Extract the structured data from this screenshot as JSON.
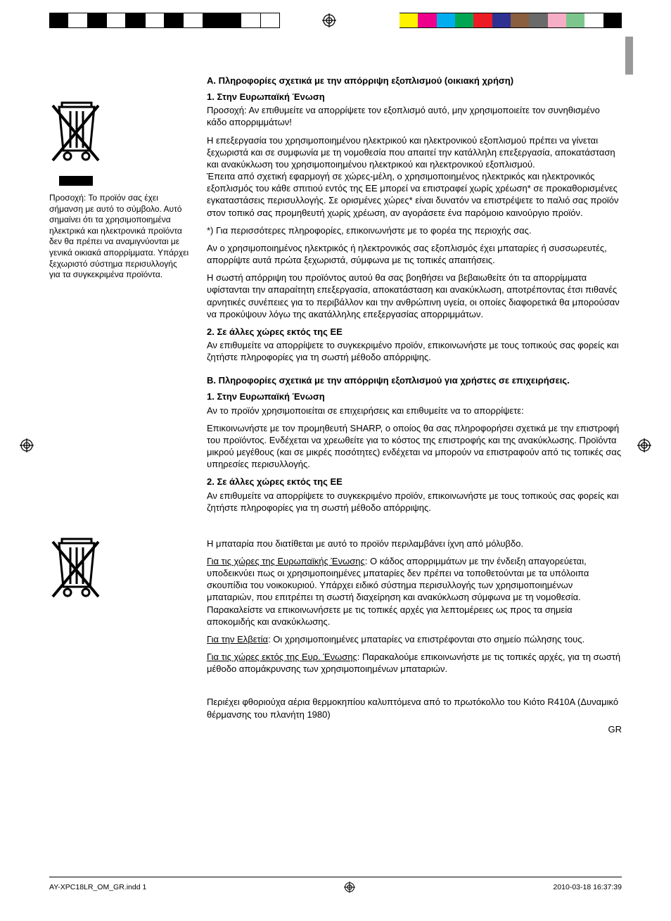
{
  "colorbar": {
    "left_pattern": [
      "#000000",
      "#ffffff",
      "#000000",
      "#ffffff",
      "#000000",
      "#ffffff",
      "#000000",
      "#ffffff",
      "#000000",
      "#000000",
      "#ffffff",
      "#ffffff"
    ],
    "right_colors": [
      "#fef200",
      "#ec008c",
      "#00aeef",
      "#00a651",
      "#ed1c24",
      "#2e3192",
      "#895f3f",
      "#6a6a6a",
      "#f6adc6",
      "#7cc68d",
      "#ffffff",
      "#000000"
    ]
  },
  "side_text": "Προσοχή: Το προϊόν σας έχει σήμανση με αυτό το σύμβολο. Αυτό σημαίνει ότι τα χρησιμοποιημένα ηλεκτρικά και ηλεκτρονικά προϊόντα δεν θα πρέπει να αναμιγνύονται με γενικά οικιακά απορρίμματα. Υπάρχει ξεχωριστό σύστημα περισυλλογής για τα συγκεκριμένα προϊόντα.",
  "A": {
    "title": "Α. Πληροφορίες σχετικά με την απόρριψη εξοπλισμού (οικιακή χρήση)",
    "s1_title": "1. Στην Ευρωπαϊκή Ένωση",
    "p1": "Προσοχή: Αν επιθυμείτε να απορρίψετε τον εξοπλισμό αυτό, μην χρησιμοποιείτε τον συνηθισμένο κάδο απορριμμάτων!",
    "p2": "Η επεξεργασία του χρησιμοποιημένου ηλεκτρικού και ηλεκτρονικού εξοπλισμού πρέπει να γίνεται ξεχωριστά και σε συμφωνία με τη νομοθεσία που απαιτεί την κατάλληλη επεξεργασία, αποκατάσταση και ανακύκλωση του χρησιμοποιημένου ηλεκτρικού και ηλεκτρονικού εξοπλισμού.",
    "p2b": "Έπειτα από σχετική εφαρμογή σε χώρες-μέλη, ο χρησιμοποιημένος ηλεκτρικός και ηλεκτρονικός εξοπλισμός του κάθε σπιτιού εντός της ΕΕ μπορεί να επιστραφεί χωρίς χρέωση* σε προκαθορισμένες εγκαταστάσεις περισυλλογής. Σε ορισμένες χώρες* είναι δυνατόν να επιστρέψετε το παλιό σας προϊόν στον τοπικό σας προμηθευτή χωρίς χρέωση, αν αγοράσετε ένα παρόμοιο καινούργιο προϊόν.",
    "p3": "*) Για περισσότερες πληροφορίες, επικοινωνήστε με το φορέα της περιοχής σας.",
    "p4": "Αν ο χρησιμοποιημένος ηλεκτρικός ή ηλεκτρονικός σας εξοπλισμός έχει μπαταρίες ή συσσωρευτές, απορρίψτε αυτά πρώτα ξεχωριστά, σύμφωνα με τις τοπικές απαιτήσεις.",
    "p5": "Η σωστή απόρριψη του προϊόντος αυτού θα σας βοηθήσει να βεβαιωθείτε ότι τα απορρίμματα υφίστανται την απαραίτητη επεξεργασία, αποκατάσταση και ανακύκλωση, αποτρέποντας έτσι πιθανές αρνητικές συνέπειες για το περιβάλλον και την ανθρώπινη υγεία, οι οποίες διαφορετικά θα μπορούσαν να προκύψουν λόγω της ακατάλληλης επεξεργασίας απορριμμάτων.",
    "s2_title": "2. Σε άλλες χώρες εκτός της ΕΕ",
    "p6": "Αν επιθυμείτε να απορρίψετε το συγκεκριμένο προϊόν, επικοινωνήστε με τους τοπικούς σας φορείς και ζητήστε πληροφορίες για τη σωστή μέθοδο απόρριψης."
  },
  "B": {
    "title": "Β. Πληροφορίες σχετικά με την απόρριψη εξοπλισμού για χρήστες σε επιχειρήσεις.",
    "s1_title": "1. Στην Ευρωπαϊκή Ένωση",
    "p1": "Αν το προϊόν χρησιμοποιείται σε επιχειρήσεις και επιθυμείτε να το απορρίψετε:",
    "p2": "Επικοινωνήστε με τον προμηθευτή SHARP, ο οποίος θα σας πληροφορήσει σχετικά με την επιστροφή του προϊόντος. Ενδέχεται να χρεωθείτε για το κόστος της επιστροφής και της ανακύκλωσης. Προϊόντα μικρού μεγέθους (και σε μικρές ποσότητες) ενδέχεται να μπορούν να επιστραφούν από τις τοπικές σας υπηρεσίες περισυλλογής.",
    "s2_title": "2. Σε άλλες χώρες εκτός της ΕΕ",
    "p3": "Αν επιθυμείτε να απορρίψετε το συγκεκριμένο προϊόν, επικοινωνήστε με τους τοπικούς σας φορείς και ζητήστε πληροφορίες για τη σωστή μέθοδο απόρριψης."
  },
  "battery": {
    "intro": "Η μπαταρία που διατίθεται με αυτό το προϊόν περιλαμβάνει ίχνη από μόλυβδο.",
    "eu_label": "Για τις χώρες της Ευρωπαϊκής Ένωσης",
    "eu_text": ": Ο κάδος  απορριμμάτων με την ένδειξη απαγορεύεται, υποδεικνύει πως  οι χρησιμοποιημένες  μπαταρίες  δεν πρέπει να τοποθετούνται με τα υπόλοιπα σκουπίδια του νοικοκυριού. Υπάρχει ειδικό σύστημα περισυλλογής  των χρησιμοποιημένων μπαταριών, που επιτρέπει τη σωστή διαχείρηση και ανακύκλωση σύμφωνα με τη νομοθεσία. Παρακαλείστε να επικοινωνήσετε με τις τοπικές  αρχές  για λεπτομέρειες ως  προς  τα σημεία αποκομιδής  και ανακύκλωσης.",
    "ch_label": "Για την Ελβετία",
    "ch_text": ": Οι χρησιμοποιημένες  μπαταρίες  να επιστρέφονται στο σημείο  πώλησης  τους.",
    "noneu_label": "Για τις  χώρες  εκτός  της  Ευρ. Ένωσης",
    "noneu_text": ": Παρακαλούμε επικοινωνήστε με τις  τοπικές  αρχές, για τη σωστή μέθοδο απομάκρυνσης  των χρησιμοποιημένων μπαταριών."
  },
  "gwp": "Περιέχει φθοριούχα αέρια θερμοκηπίου καλυπτόμενα από το πρωτόκολλο του Κιότο R410A (Δυναμικό θέρμανσης του πλανήτη 1980)",
  "page_label": "GR",
  "footer": {
    "file": "AY-XPC18LR_OM_GR.indd   1",
    "date": "2010-03-18   16:37:39"
  }
}
